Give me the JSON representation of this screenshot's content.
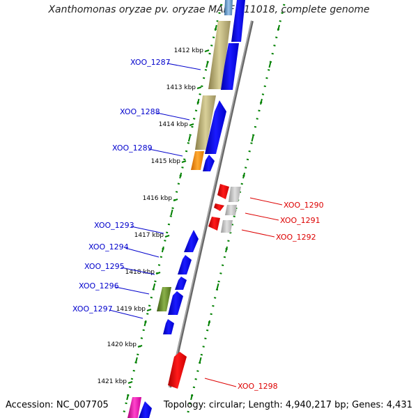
{
  "title": "Xanthomonas oryzae pv. oryzae MAFF 311018, complete genome",
  "accession": "Accession: NC_007705",
  "summary": "Topology: circular; Length: 4,940,217 bp; Genes: 4,431",
  "colors": {
    "forward_gene": "#0000ff",
    "reverse_gene": "#ff0000",
    "label_forward": "#0000cc",
    "label_reverse": "#dd0000",
    "backbone": "#888888",
    "tick": "#008000"
  },
  "ruler": [
    {
      "label": "1412 kbp"
    },
    {
      "label": "1413 kbp"
    },
    {
      "label": "1414 kbp"
    },
    {
      "label": "1415 kbp"
    },
    {
      "label": "1416 kbp"
    },
    {
      "label": "1417 kbp"
    },
    {
      "label": "1418 kbp"
    },
    {
      "label": "1419 kbp"
    },
    {
      "label": "1420 kbp"
    },
    {
      "label": "1421 kbp"
    }
  ],
  "gene_labels": [
    {
      "id": "XOO_1287",
      "strand": "forward"
    },
    {
      "id": "XOO_1288",
      "strand": "forward"
    },
    {
      "id": "XOO_1289",
      "strand": "forward"
    },
    {
      "id": "XOO_1293",
      "strand": "forward"
    },
    {
      "id": "XOO_1294",
      "strand": "forward"
    },
    {
      "id": "XOO_1295",
      "strand": "forward"
    },
    {
      "id": "XOO_1296",
      "strand": "forward"
    },
    {
      "id": "XOO_1297",
      "strand": "forward"
    },
    {
      "id": "XOO_1290",
      "strand": "reverse"
    },
    {
      "id": "XOO_1291",
      "strand": "reverse"
    },
    {
      "id": "XOO_1292",
      "strand": "reverse"
    },
    {
      "id": "XOO_1298",
      "strand": "reverse"
    }
  ]
}
